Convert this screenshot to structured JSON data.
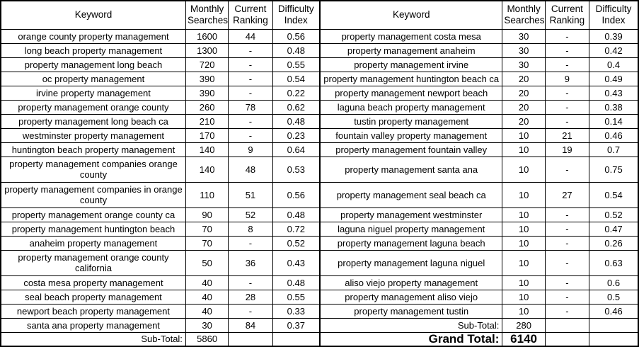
{
  "left_table": {
    "headers": [
      "Keyword",
      "Monthly Searches",
      "Current Ranking",
      "Difficulty Index"
    ],
    "rows": [
      {
        "keyword": "orange county property management",
        "monthly_searches": "1600",
        "current_ranking": "44",
        "difficulty_index": "0.56",
        "tall": false
      },
      {
        "keyword": "long beach property management",
        "monthly_searches": "1300",
        "current_ranking": "-",
        "difficulty_index": "0.48",
        "tall": false
      },
      {
        "keyword": "property management long beach",
        "monthly_searches": "720",
        "current_ranking": "-",
        "difficulty_index": "0.55",
        "tall": false
      },
      {
        "keyword": "oc property management",
        "monthly_searches": "390",
        "current_ranking": "-",
        "difficulty_index": "0.54",
        "tall": false
      },
      {
        "keyword": "irvine property management",
        "monthly_searches": "390",
        "current_ranking": "-",
        "difficulty_index": "0.22",
        "tall": false
      },
      {
        "keyword": "property management orange county",
        "monthly_searches": "260",
        "current_ranking": "78",
        "difficulty_index": "0.62",
        "tall": false
      },
      {
        "keyword": "property management long beach ca",
        "monthly_searches": "210",
        "current_ranking": "-",
        "difficulty_index": "0.48",
        "tall": false
      },
      {
        "keyword": "westminster property management",
        "monthly_searches": "170",
        "current_ranking": "-",
        "difficulty_index": "0.23",
        "tall": false
      },
      {
        "keyword": "huntington beach property management",
        "monthly_searches": "140",
        "current_ranking": "9",
        "difficulty_index": "0.64",
        "tall": false
      },
      {
        "keyword": "property management companies orange county",
        "monthly_searches": "140",
        "current_ranking": "48",
        "difficulty_index": "0.53",
        "tall": true
      },
      {
        "keyword": "property management companies in orange county",
        "monthly_searches": "110",
        "current_ranking": "51",
        "difficulty_index": "0.56",
        "tall": true
      },
      {
        "keyword": "property management orange county ca",
        "monthly_searches": "90",
        "current_ranking": "52",
        "difficulty_index": "0.48",
        "tall": false
      },
      {
        "keyword": "property management huntington beach",
        "monthly_searches": "70",
        "current_ranking": "8",
        "difficulty_index": "0.72",
        "tall": false
      },
      {
        "keyword": "anaheim property management",
        "monthly_searches": "70",
        "current_ranking": "-",
        "difficulty_index": "0.52",
        "tall": false
      },
      {
        "keyword": "property management orange county california",
        "monthly_searches": "50",
        "current_ranking": "36",
        "difficulty_index": "0.43",
        "tall": true
      },
      {
        "keyword": "costa mesa property management",
        "monthly_searches": "40",
        "current_ranking": "-",
        "difficulty_index": "0.48",
        "tall": false
      },
      {
        "keyword": "seal beach property management",
        "monthly_searches": "40",
        "current_ranking": "28",
        "difficulty_index": "0.55",
        "tall": false
      },
      {
        "keyword": "newport beach property management",
        "monthly_searches": "40",
        "current_ranking": "-",
        "difficulty_index": "0.33",
        "tall": false
      },
      {
        "keyword": "santa ana property management",
        "monthly_searches": "30",
        "current_ranking": "84",
        "difficulty_index": "0.37",
        "tall": false
      }
    ],
    "footers": [
      {
        "label": "Sub-Total:",
        "value": "5860",
        "grand": false
      }
    ]
  },
  "right_table": {
    "headers": [
      "Keyword",
      "Monthly Searches",
      "Current Ranking",
      "Difficulty Index"
    ],
    "rows": [
      {
        "keyword": "property management costa mesa",
        "monthly_searches": "30",
        "current_ranking": "-",
        "difficulty_index": "0.39",
        "tall": false
      },
      {
        "keyword": "property management anaheim",
        "monthly_searches": "30",
        "current_ranking": "-",
        "difficulty_index": "0.42",
        "tall": false
      },
      {
        "keyword": "property management irvine",
        "monthly_searches": "30",
        "current_ranking": "-",
        "difficulty_index": "0.4",
        "tall": false
      },
      {
        "keyword": "property management huntington beach ca",
        "monthly_searches": "20",
        "current_ranking": "9",
        "difficulty_index": "0.49",
        "tall": false
      },
      {
        "keyword": "property management newport beach",
        "monthly_searches": "20",
        "current_ranking": "-",
        "difficulty_index": "0.43",
        "tall": false
      },
      {
        "keyword": "laguna beach property management",
        "monthly_searches": "20",
        "current_ranking": "-",
        "difficulty_index": "0.38",
        "tall": false
      },
      {
        "keyword": "tustin property management",
        "monthly_searches": "20",
        "current_ranking": "-",
        "difficulty_index": "0.14",
        "tall": false
      },
      {
        "keyword": "fountain valley property management",
        "monthly_searches": "10",
        "current_ranking": "21",
        "difficulty_index": "0.46",
        "tall": false
      },
      {
        "keyword": "property management fountain valley",
        "monthly_searches": "10",
        "current_ranking": "19",
        "difficulty_index": "0.7",
        "tall": false
      },
      {
        "keyword": "property management santa ana",
        "monthly_searches": "10",
        "current_ranking": "-",
        "difficulty_index": "0.75",
        "tall": true
      },
      {
        "keyword": "property management seal beach ca",
        "monthly_searches": "10",
        "current_ranking": "27",
        "difficulty_index": "0.54",
        "tall": true
      },
      {
        "keyword": "property management westminster",
        "monthly_searches": "10",
        "current_ranking": "-",
        "difficulty_index": "0.52",
        "tall": false
      },
      {
        "keyword": "laguna niguel property management",
        "monthly_searches": "10",
        "current_ranking": "-",
        "difficulty_index": "0.47",
        "tall": false
      },
      {
        "keyword": "property management laguna beach",
        "monthly_searches": "10",
        "current_ranking": "-",
        "difficulty_index": "0.26",
        "tall": false
      },
      {
        "keyword": "property management laguna niguel",
        "monthly_searches": "10",
        "current_ranking": "-",
        "difficulty_index": "0.63",
        "tall": true
      },
      {
        "keyword": "aliso viejo property management",
        "monthly_searches": "10",
        "current_ranking": "-",
        "difficulty_index": "0.6",
        "tall": false
      },
      {
        "keyword": "property management aliso viejo",
        "monthly_searches": "10",
        "current_ranking": "-",
        "difficulty_index": "0.5",
        "tall": false
      },
      {
        "keyword": "property management tustin",
        "monthly_searches": "10",
        "current_ranking": "-",
        "difficulty_index": "0.46",
        "tall": false
      }
    ],
    "footers": [
      {
        "label": "Sub-Total:",
        "value": "280",
        "grand": false
      },
      {
        "label": "Grand Total:",
        "value": "6140",
        "grand": true
      }
    ]
  }
}
